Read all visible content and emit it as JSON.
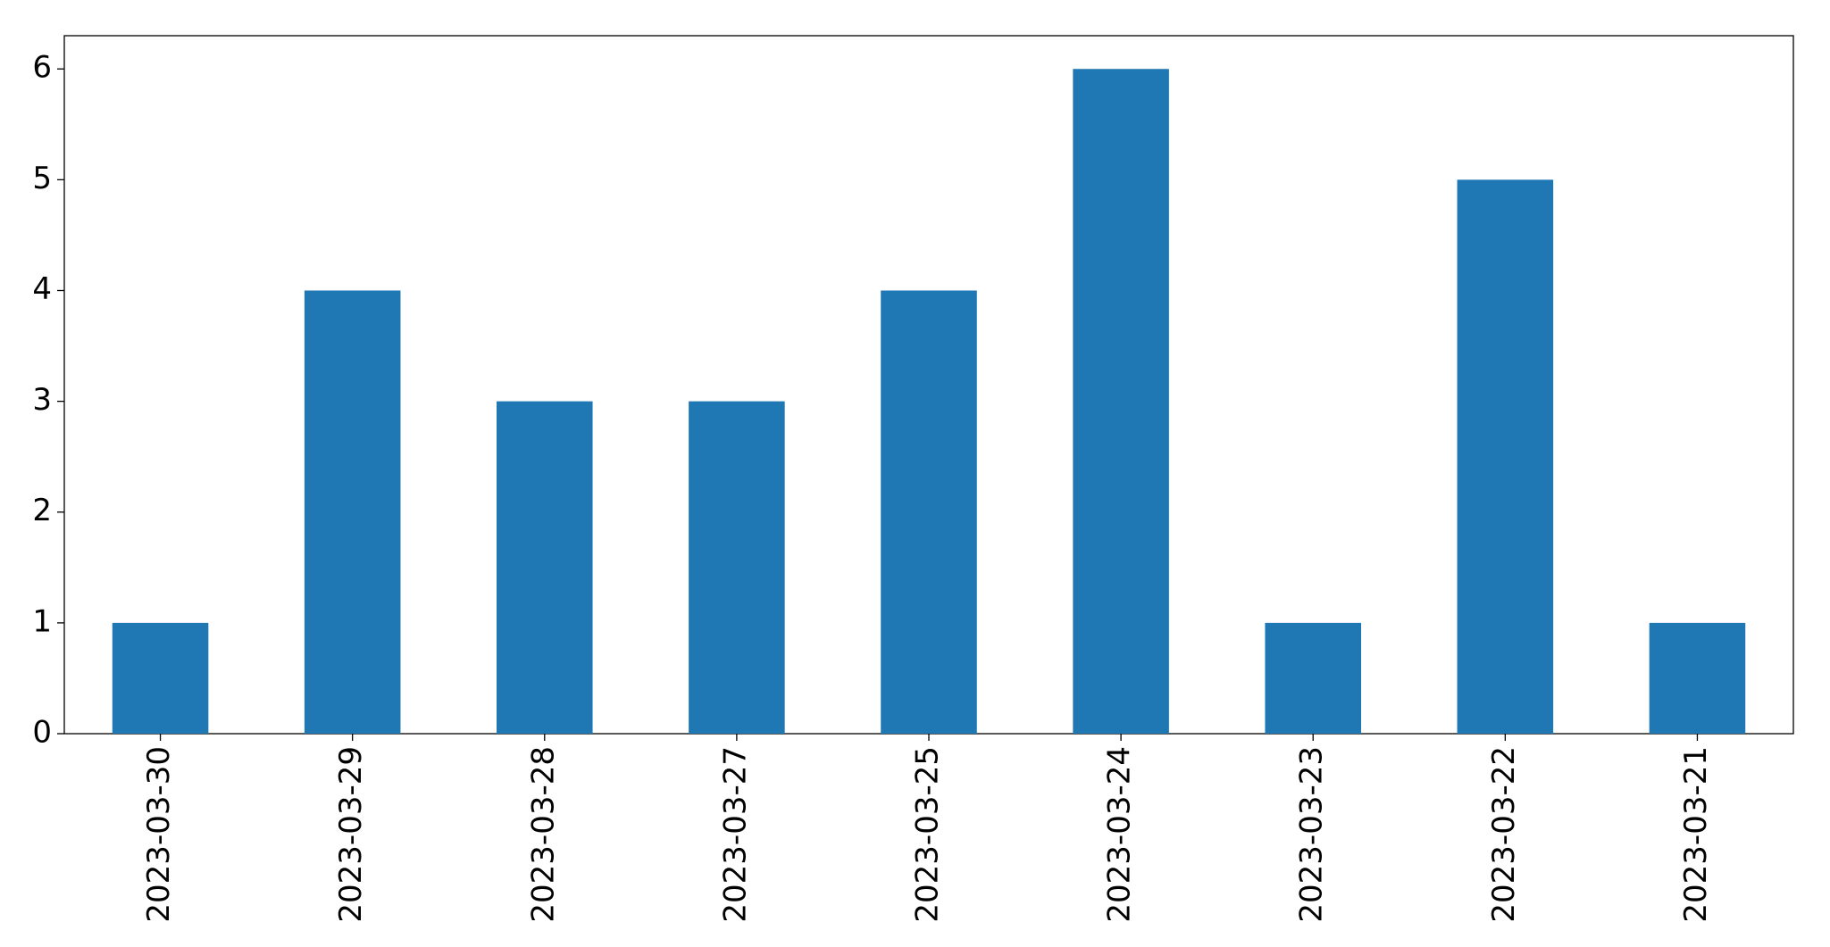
{
  "chart_data": {
    "type": "bar",
    "categories": [
      "2023-03-30",
      "2023-03-29",
      "2023-03-28",
      "2023-03-27",
      "2023-03-25",
      "2023-03-24",
      "2023-03-23",
      "2023-03-22",
      "2023-03-21"
    ],
    "values": [
      1,
      4,
      3,
      3,
      4,
      6,
      1,
      5,
      1
    ],
    "color": "#1f77b4",
    "ylim": [
      0,
      6.3
    ],
    "yticks": [
      0,
      1,
      2,
      3,
      4,
      5,
      6
    ],
    "grid": false
  }
}
